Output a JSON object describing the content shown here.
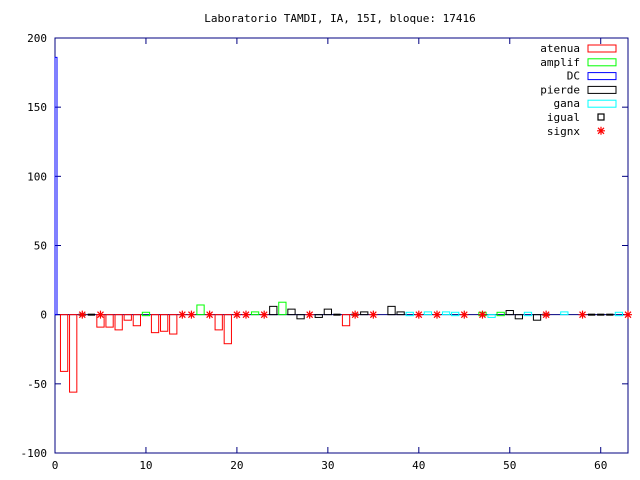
{
  "chart_data": {
    "type": "bar",
    "title": "Laboratorio TAMDI, IA, 15I,  bloque: 17416",
    "xlabel": "",
    "ylabel": "",
    "xlim": [
      0,
      63
    ],
    "ylim": [
      -100,
      200
    ],
    "xticks": [
      0,
      10,
      20,
      30,
      40,
      50,
      60
    ],
    "yticks": [
      -100,
      -50,
      0,
      50,
      100,
      150,
      200
    ],
    "grid": false,
    "legend_position": "top-right",
    "colors": {
      "atenua": "#ff0000",
      "amplif": "#00ff00",
      "DC": "#0000ff",
      "pierde": "#000000",
      "gana": "#00ffff",
      "igual": "#000000",
      "signx": "#ff0000",
      "border": "#000080",
      "title": "#000080"
    },
    "series": [
      {
        "name": "atenua",
        "marker": "bar",
        "points": [
          [
            1,
            -41
          ],
          [
            2,
            -56
          ],
          [
            5,
            -9
          ],
          [
            6,
            -9
          ],
          [
            7,
            -11
          ],
          [
            8,
            -4
          ],
          [
            9,
            -8
          ],
          [
            11,
            -13
          ],
          [
            12,
            -12
          ],
          [
            13,
            -14
          ],
          [
            18,
            -11
          ],
          [
            19,
            -21
          ],
          [
            32,
            -8
          ]
        ]
      },
      {
        "name": "amplif",
        "marker": "bar",
        "points": [
          [
            10,
            1
          ],
          [
            16,
            7
          ],
          [
            22,
            2
          ],
          [
            25,
            9
          ],
          [
            47,
            1
          ],
          [
            49,
            1
          ]
        ]
      },
      {
        "name": "DC",
        "marker": "bar",
        "points": [
          [
            0,
            186
          ]
        ]
      },
      {
        "name": "pierde",
        "marker": "bar",
        "points": [
          [
            24,
            6
          ],
          [
            26,
            4
          ],
          [
            27,
            -3
          ],
          [
            29,
            -2
          ],
          [
            30,
            4
          ],
          [
            34,
            2
          ],
          [
            37,
            6
          ],
          [
            38,
            2
          ],
          [
            50,
            3
          ],
          [
            51,
            -3
          ],
          [
            53,
            -4
          ]
        ]
      },
      {
        "name": "gana",
        "marker": "bar",
        "points": [
          [
            39,
            1
          ],
          [
            41,
            2
          ],
          [
            43,
            2
          ],
          [
            44,
            1
          ],
          [
            48,
            -2
          ],
          [
            52,
            1
          ],
          [
            56,
            2
          ],
          [
            62,
            1
          ]
        ]
      },
      {
        "name": "igual",
        "marker": "dash",
        "points": [
          [
            3,
            0
          ],
          [
            4,
            0
          ],
          [
            31,
            0
          ],
          [
            33,
            0
          ],
          [
            54,
            0
          ],
          [
            59,
            0
          ],
          [
            60,
            0
          ],
          [
            61,
            0
          ]
        ]
      },
      {
        "name": "signx",
        "marker": "star",
        "points": [
          [
            3,
            0
          ],
          [
            5,
            0
          ],
          [
            14,
            0
          ],
          [
            15,
            0
          ],
          [
            17,
            0
          ],
          [
            20,
            0
          ],
          [
            21,
            0
          ],
          [
            23,
            0
          ],
          [
            28,
            0
          ],
          [
            33,
            0
          ],
          [
            35,
            0
          ],
          [
            40,
            0
          ],
          [
            42,
            0
          ],
          [
            45,
            0
          ],
          [
            47,
            0
          ],
          [
            54,
            0
          ],
          [
            58,
            0
          ],
          [
            63,
            0
          ]
        ]
      }
    ]
  }
}
